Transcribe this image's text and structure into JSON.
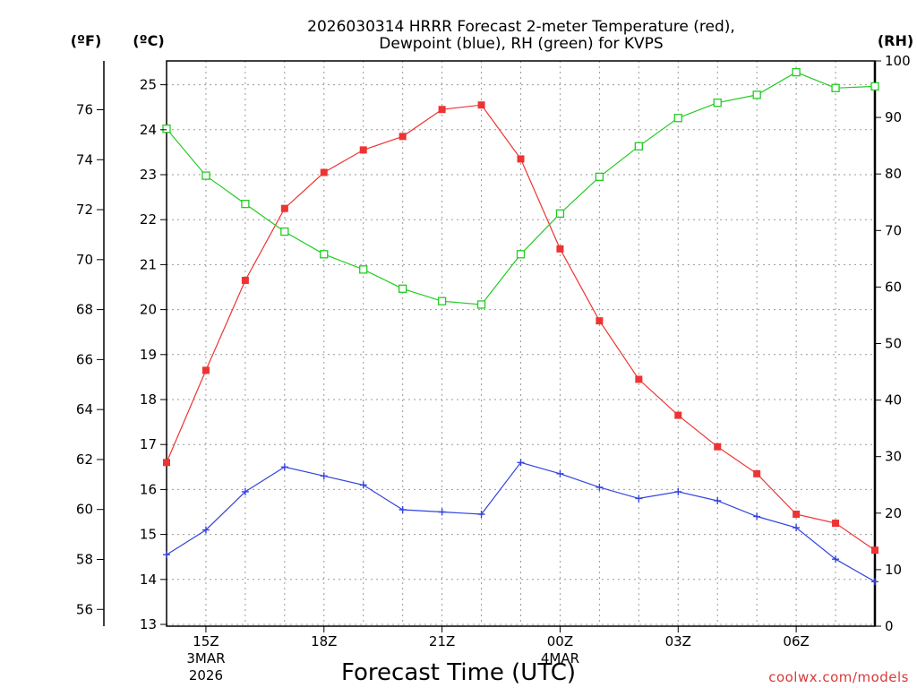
{
  "chart_data": {
    "type": "line",
    "title_line1": "2026030314 HRRR Forecast 2-meter Temperature (red),",
    "title_line2": "Dewpoint (blue), RH (green) for KVPS",
    "xlabel": "Forecast Time (UTC)",
    "credit": "coolwx.com/models",
    "left_unit_f": "(ºF)",
    "left_unit_c": "(ºC)",
    "right_unit": "(RH)",
    "hours": [
      14,
      15,
      16,
      17,
      18,
      19,
      20,
      21,
      22,
      23,
      24,
      25,
      26,
      27,
      28,
      29,
      30,
      31,
      32
    ],
    "xlim": [
      14,
      32
    ],
    "x_ticks": [
      {
        "hour": 15,
        "label": "15Z",
        "sub1": "3MAR",
        "sub2": "2026"
      },
      {
        "hour": 18,
        "label": "18Z",
        "sub1": "",
        "sub2": ""
      },
      {
        "hour": 21,
        "label": "21Z",
        "sub1": "",
        "sub2": ""
      },
      {
        "hour": 24,
        "label": "00Z",
        "sub1": "4MAR",
        "sub2": ""
      },
      {
        "hour": 27,
        "label": "03Z",
        "sub1": "",
        "sub2": ""
      },
      {
        "hour": 30,
        "label": "06Z",
        "sub1": "",
        "sub2": ""
      }
    ],
    "ylim_c": [
      13,
      25.5
    ],
    "ylim_rh": [
      0,
      100
    ],
    "c_ticks": [
      13,
      14,
      15,
      16,
      17,
      18,
      19,
      20,
      21,
      22,
      23,
      24,
      25
    ],
    "c_tick_labels": [
      "13",
      "14",
      "15",
      "16",
      "17",
      "18",
      "19",
      "20",
      "21",
      "22",
      "23",
      "24",
      "25"
    ],
    "f_ticks": [
      56,
      58,
      60,
      62,
      64,
      66,
      68,
      70,
      72,
      74,
      76
    ],
    "f_tick_labels": [
      "56",
      "58",
      "60",
      "62",
      "64",
      "66",
      "68",
      "70",
      "72",
      "74",
      "76"
    ],
    "rh_ticks": [
      0,
      10,
      20,
      30,
      40,
      50,
      60,
      70,
      80,
      90,
      100
    ],
    "rh_tick_labels": [
      "0",
      "10",
      "20",
      "30",
      "40",
      "50",
      "60",
      "70",
      "80",
      "90",
      "100"
    ],
    "series": [
      {
        "name": "Temperature",
        "axis": "c",
        "color": "#ee3333",
        "marker": "filled-square",
        "values": [
          16.6,
          18.65,
          20.65,
          22.25,
          23.05,
          23.55,
          23.85,
          24.45,
          24.55,
          23.35,
          21.35,
          19.75,
          18.45,
          17.65,
          16.95,
          16.35,
          15.45,
          15.25,
          14.65
        ]
      },
      {
        "name": "Dewpoint",
        "axis": "c",
        "color": "#3344dd",
        "marker": "plus",
        "values": [
          14.55,
          15.1,
          15.95,
          16.5,
          16.3,
          16.1,
          15.55,
          15.5,
          15.45,
          16.6,
          16.35,
          16.05,
          15.8,
          15.95,
          15.75,
          15.4,
          15.15,
          14.45,
          13.95
        ]
      },
      {
        "name": "RH",
        "axis": "rh",
        "color": "#22cc22",
        "marker": "open-square",
        "values": [
          88.0,
          79.7,
          74.7,
          69.8,
          65.8,
          63.1,
          59.7,
          57.5,
          56.9,
          65.8,
          73.0,
          79.5,
          84.9,
          89.9,
          92.6,
          94.0,
          98.0,
          95.2,
          95.5
        ]
      }
    ]
  }
}
